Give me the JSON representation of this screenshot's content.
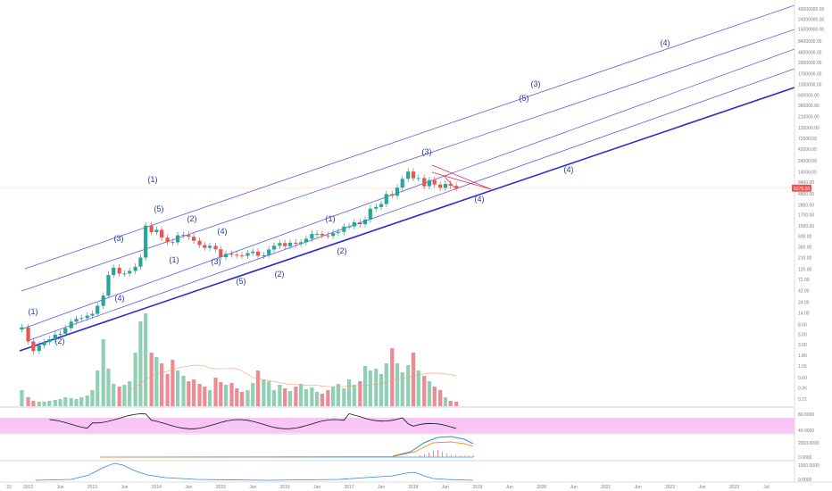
{
  "chart_data": {
    "type": "candlestick",
    "y_scale": "log",
    "price_axis_labels": [
      "40000000.00",
      "24000000.00",
      "15000000.00",
      "8400000.00",
      "4800000.00",
      "2900000.00",
      "1700000.00",
      "1000000.00",
      "600000.00",
      "360000.00",
      "210000.00",
      "120000.00",
      "72000.00",
      "42000.00",
      "24000.00",
      "14000.00",
      "8400.00",
      "4800.00",
      "2800.00",
      "1700.00",
      "1000.00",
      "600.00",
      "360.00",
      "210.00",
      "120.00",
      "72.00",
      "42.00",
      "24.00",
      "14.00",
      "8.00",
      "5.00",
      "3.00",
      "1.80",
      "1.05",
      "0.60",
      "0.36",
      "0.21"
    ],
    "price_axis_values": [
      40000000,
      24000000,
      15000000,
      8400000,
      4800000,
      2900000,
      1700000,
      1000000,
      600000,
      360000,
      210000,
      120000,
      72000,
      42000,
      24000,
      14000,
      8400,
      4800,
      2800,
      1700,
      1000,
      600,
      360,
      210,
      120,
      72,
      42,
      24,
      14,
      8,
      5,
      3,
      1.8,
      1.05,
      0.6,
      0.36,
      0.21
    ],
    "last_price_label": "6275.20",
    "last_price": 6275.2,
    "time_axis_labels": [
      "22",
      "2012",
      "Jun",
      "2013",
      "Jun",
      "2014",
      "Jun",
      "2015",
      "Jun",
      "2016",
      "Jun",
      "2017",
      "Jun",
      "2018",
      "Jun",
      "2019",
      "Jun",
      "2020",
      "Jun",
      "2021",
      "Jun",
      "2022",
      "Jun",
      "2023",
      "Jul"
    ],
    "time_axis_t": [
      -0.3,
      0,
      0.5,
      1,
      1.5,
      2,
      2.5,
      3,
      3.5,
      4,
      4.5,
      5,
      5.5,
      6,
      6.5,
      7,
      7.5,
      8,
      8.5,
      9,
      9.5,
      10,
      10.5,
      11,
      11.5
    ],
    "approx_monthly_close": [
      {
        "t": -0.1,
        "close": 7
      },
      {
        "t": 0.0,
        "close": 3.5
      },
      {
        "t": 0.08,
        "close": 2.2
      },
      {
        "t": 0.17,
        "close": 2.9
      },
      {
        "t": 0.25,
        "close": 3.4
      },
      {
        "t": 0.33,
        "close": 3.9
      },
      {
        "t": 0.42,
        "close": 4.9
      },
      {
        "t": 0.5,
        "close": 5.1
      },
      {
        "t": 0.58,
        "close": 6.7
      },
      {
        "t": 0.67,
        "close": 9.2
      },
      {
        "t": 0.75,
        "close": 10.6
      },
      {
        "t": 0.83,
        "close": 11
      },
      {
        "t": 0.92,
        "close": 12.4
      },
      {
        "t": 1.0,
        "close": 13.5
      },
      {
        "t": 1.08,
        "close": 20
      },
      {
        "t": 1.17,
        "close": 33
      },
      {
        "t": 1.25,
        "close": 90
      },
      {
        "t": 1.33,
        "close": 129
      },
      {
        "t": 1.42,
        "close": 97
      },
      {
        "t": 1.5,
        "close": 97
      },
      {
        "t": 1.58,
        "close": 110
      },
      {
        "t": 1.67,
        "close": 135
      },
      {
        "t": 1.75,
        "close": 211
      },
      {
        "t": 1.83,
        "close": 1010
      },
      {
        "t": 1.92,
        "close": 732
      },
      {
        "t": 2.0,
        "close": 820
      },
      {
        "t": 2.08,
        "close": 560
      },
      {
        "t": 2.17,
        "close": 450
      },
      {
        "t": 2.25,
        "close": 445
      },
      {
        "t": 2.33,
        "close": 628
      },
      {
        "t": 2.42,
        "close": 640
      },
      {
        "t": 2.5,
        "close": 585
      },
      {
        "t": 2.58,
        "close": 480
      },
      {
        "t": 2.67,
        "close": 390
      },
      {
        "t": 2.75,
        "close": 340
      },
      {
        "t": 2.83,
        "close": 375
      },
      {
        "t": 2.92,
        "close": 318
      },
      {
        "t": 3.0,
        "close": 216
      },
      {
        "t": 3.08,
        "close": 254
      },
      {
        "t": 3.17,
        "close": 244
      },
      {
        "t": 3.25,
        "close": 236
      },
      {
        "t": 3.33,
        "close": 230
      },
      {
        "t": 3.42,
        "close": 263
      },
      {
        "t": 3.5,
        "close": 284
      },
      {
        "t": 3.58,
        "close": 230
      },
      {
        "t": 3.67,
        "close": 236
      },
      {
        "t": 3.75,
        "close": 314
      },
      {
        "t": 3.83,
        "close": 377
      },
      {
        "t": 3.92,
        "close": 430
      },
      {
        "t": 4.0,
        "close": 368
      },
      {
        "t": 4.08,
        "close": 437
      },
      {
        "t": 4.17,
        "close": 416
      },
      {
        "t": 4.25,
        "close": 448
      },
      {
        "t": 4.33,
        "close": 531
      },
      {
        "t": 4.42,
        "close": 670
      },
      {
        "t": 4.5,
        "close": 673
      },
      {
        "t": 4.58,
        "close": 624
      },
      {
        "t": 4.67,
        "close": 609
      },
      {
        "t": 4.75,
        "close": 700
      },
      {
        "t": 4.83,
        "close": 740
      },
      {
        "t": 4.92,
        "close": 963
      },
      {
        "t": 5.0,
        "close": 970
      },
      {
        "t": 5.08,
        "close": 1190
      },
      {
        "t": 5.17,
        "close": 1080
      },
      {
        "t": 5.25,
        "close": 1350
      },
      {
        "t": 5.33,
        "close": 2300
      },
      {
        "t": 5.42,
        "close": 2500
      },
      {
        "t": 5.5,
        "close": 2900
      },
      {
        "t": 5.58,
        "close": 4700
      },
      {
        "t": 5.67,
        "close": 4340
      },
      {
        "t": 5.75,
        "close": 6470
      },
      {
        "t": 5.83,
        "close": 9900
      },
      {
        "t": 5.92,
        "close": 14150
      },
      {
        "t": 6.0,
        "close": 10200
      },
      {
        "t": 6.08,
        "close": 10300
      },
      {
        "t": 6.17,
        "close": 6900
      },
      {
        "t": 6.25,
        "close": 9250
      },
      {
        "t": 6.33,
        "close": 7500
      },
      {
        "t": 6.42,
        "close": 6400
      },
      {
        "t": 6.5,
        "close": 7730
      },
      {
        "t": 6.58,
        "close": 7030
      },
      {
        "t": 6.67,
        "close": 6270
      }
    ],
    "elliott_wave_labels": [
      "(1)",
      "(2)",
      "(3)",
      "(4)",
      "(5)",
      "(1)",
      "(2)",
      "(3)",
      "(4)",
      "(5)",
      "(1)",
      "(2)",
      "(3)",
      "(4)",
      "(5)",
      "(3)",
      "(4)",
      "(5)",
      "(3)",
      "(2)",
      "(1)",
      "(4)"
    ],
    "indicator_panes": [
      {
        "axis_labels": [
          "80.0000",
          "40.0000"
        ]
      },
      {
        "axis_labels": [
          "2000.0000",
          "0.0000"
        ]
      },
      {
        "axis_labels": [
          "1000.0000",
          "0.0000"
        ]
      }
    ]
  },
  "colors": {
    "up": "#26a69a",
    "down": "#ef5350",
    "vol_up": "#8fd0b4",
    "vol_down": "#f08a92",
    "channel": "#5a5cf0",
    "support": "#2a2ad0",
    "triangle": "#e0305a",
    "rsi_band": "#f7c6f4",
    "wave_text": "#1f3fa8",
    "axis_text": "#787b86",
    "price_tag": "#ef5350"
  }
}
